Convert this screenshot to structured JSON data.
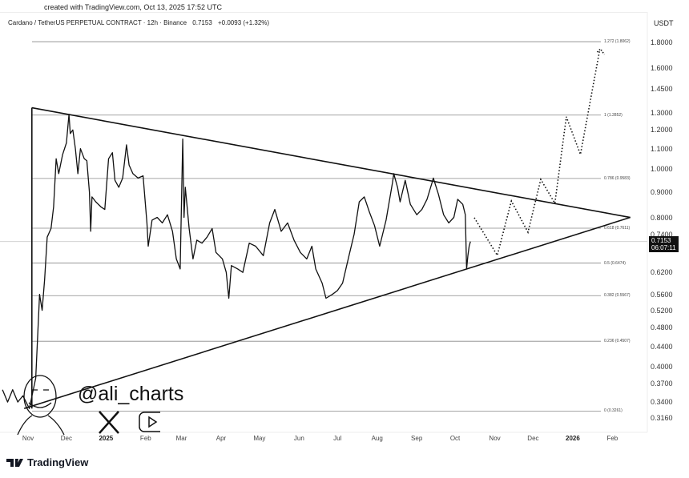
{
  "header": {
    "created": "created with TradingView.com, Oct 13, 2025 17:52 UTC",
    "symbol": "Cardano / TetherUS PERPETUAL CONTRACT · 12h · Binance",
    "price": "0.7153",
    "change": "+0.0093 (+1.32%)"
  },
  "price_tag": {
    "price": "0.7153",
    "countdown": "06:07:11"
  },
  "watermark": {
    "handle": "@ali_charts",
    "icons": [
      "x-logo-icon",
      "youtube-icon",
      "avatar-sketch"
    ]
  },
  "footer": {
    "brand": "TradingView"
  },
  "chart_data": {
    "type": "line",
    "title": "Cardano / TetherUS PERPETUAL CONTRACT · 12h · Binance",
    "ylabel": "USDT",
    "y_scale": "log",
    "ylim": [
      0.31,
      1.95
    ],
    "grid": false,
    "y_ticks": [
      "1.8000",
      "1.6000",
      "1.4500",
      "1.3000",
      "1.2000",
      "1.1000",
      "1.0000",
      "0.9000",
      "0.8000",
      "0.7400",
      "0.6200",
      "0.5600",
      "0.5200",
      "0.4800",
      "0.4400",
      "0.4000",
      "0.3700",
      "0.3400",
      "0.3160"
    ],
    "x_ticks": [
      {
        "label": "Nov",
        "date": "2024-11-01"
      },
      {
        "label": "Dec",
        "date": "2024-12-01"
      },
      {
        "label": "2025",
        "date": "2025-01-01",
        "bold": true
      },
      {
        "label": "Feb",
        "date": "2025-02-01"
      },
      {
        "label": "Mar",
        "date": "2025-03-01"
      },
      {
        "label": "Apr",
        "date": "2025-04-01"
      },
      {
        "label": "May",
        "date": "2025-05-01"
      },
      {
        "label": "Jun",
        "date": "2025-06-01"
      },
      {
        "label": "Jul",
        "date": "2025-07-01"
      },
      {
        "label": "Aug",
        "date": "2025-08-01"
      },
      {
        "label": "Sep",
        "date": "2025-09-01"
      },
      {
        "label": "Oct",
        "date": "2025-10-01"
      },
      {
        "label": "Nov",
        "date": "2025-11-01"
      },
      {
        "label": "Dec",
        "date": "2025-12-01"
      },
      {
        "label": "2026",
        "date": "2026-01-01",
        "bold": true
      },
      {
        "label": "Feb",
        "date": "2026-02-01"
      }
    ],
    "price_series": [
      [
        "2024-10-12",
        0.36
      ],
      [
        "2024-10-16",
        0.34
      ],
      [
        "2024-10-20",
        0.36
      ],
      [
        "2024-10-24",
        0.34
      ],
      [
        "2024-10-28",
        0.35
      ],
      [
        "2024-11-02",
        0.33
      ],
      [
        "2024-11-07",
        0.38
      ],
      [
        "2024-11-10",
        0.56
      ],
      [
        "2024-11-12",
        0.52
      ],
      [
        "2024-11-14",
        0.6
      ],
      [
        "2024-11-16",
        0.73
      ],
      [
        "2024-11-19",
        0.76
      ],
      [
        "2024-11-21",
        0.84
      ],
      [
        "2024-11-23",
        1.05
      ],
      [
        "2024-11-25",
        0.98
      ],
      [
        "2024-11-28",
        1.07
      ],
      [
        "2024-12-01",
        1.13
      ],
      [
        "2024-12-03",
        1.29
      ],
      [
        "2024-12-04",
        1.18
      ],
      [
        "2024-12-06",
        1.2
      ],
      [
        "2024-12-08",
        1.1
      ],
      [
        "2024-12-10",
        0.98
      ],
      [
        "2024-12-12",
        1.1
      ],
      [
        "2024-12-15",
        1.05
      ],
      [
        "2024-12-17",
        1.04
      ],
      [
        "2024-12-19",
        0.9
      ],
      [
        "2024-12-20",
        0.75
      ],
      [
        "2024-12-21",
        0.88
      ],
      [
        "2024-12-24",
        0.86
      ],
      [
        "2024-12-28",
        0.84
      ],
      [
        "2024-12-31",
        0.83
      ],
      [
        "2025-01-03",
        1.05
      ],
      [
        "2025-01-06",
        1.08
      ],
      [
        "2025-01-08",
        0.95
      ],
      [
        "2025-01-11",
        0.92
      ],
      [
        "2025-01-14",
        0.96
      ],
      [
        "2025-01-17",
        1.12
      ],
      [
        "2025-01-19",
        1.02
      ],
      [
        "2025-01-22",
        0.98
      ],
      [
        "2025-01-26",
        0.96
      ],
      [
        "2025-01-30",
        0.97
      ],
      [
        "2025-02-02",
        0.78
      ],
      [
        "2025-02-03",
        0.7
      ],
      [
        "2025-02-06",
        0.79
      ],
      [
        "2025-02-10",
        0.8
      ],
      [
        "2025-02-14",
        0.78
      ],
      [
        "2025-02-18",
        0.81
      ],
      [
        "2025-02-22",
        0.75
      ],
      [
        "2025-02-25",
        0.66
      ],
      [
        "2025-02-28",
        0.63
      ],
      [
        "2025-03-02",
        1.15
      ],
      [
        "2025-03-03",
        0.8
      ],
      [
        "2025-03-04",
        0.92
      ],
      [
        "2025-03-07",
        0.76
      ],
      [
        "2025-03-10",
        0.66
      ],
      [
        "2025-03-13",
        0.72
      ],
      [
        "2025-03-17",
        0.71
      ],
      [
        "2025-03-21",
        0.73
      ],
      [
        "2025-03-25",
        0.76
      ],
      [
        "2025-03-28",
        0.68
      ],
      [
        "2025-04-02",
        0.66
      ],
      [
        "2025-04-05",
        0.62
      ],
      [
        "2025-04-07",
        0.55
      ],
      [
        "2025-04-09",
        0.64
      ],
      [
        "2025-04-14",
        0.63
      ],
      [
        "2025-04-18",
        0.62
      ],
      [
        "2025-04-23",
        0.71
      ],
      [
        "2025-04-28",
        0.7
      ],
      [
        "2025-05-04",
        0.67
      ],
      [
        "2025-05-09",
        0.78
      ],
      [
        "2025-05-13",
        0.83
      ],
      [
        "2025-05-18",
        0.75
      ],
      [
        "2025-05-23",
        0.78
      ],
      [
        "2025-05-28",
        0.72
      ],
      [
        "2025-06-02",
        0.68
      ],
      [
        "2025-06-07",
        0.66
      ],
      [
        "2025-06-11",
        0.7
      ],
      [
        "2025-06-14",
        0.63
      ],
      [
        "2025-06-19",
        0.59
      ],
      [
        "2025-06-22",
        0.55
      ],
      [
        "2025-06-27",
        0.56
      ],
      [
        "2025-07-01",
        0.57
      ],
      [
        "2025-07-05",
        0.59
      ],
      [
        "2025-07-10",
        0.67
      ],
      [
        "2025-07-14",
        0.74
      ],
      [
        "2025-07-18",
        0.86
      ],
      [
        "2025-07-22",
        0.88
      ],
      [
        "2025-07-26",
        0.82
      ],
      [
        "2025-07-30",
        0.77
      ],
      [
        "2025-08-03",
        0.7
      ],
      [
        "2025-08-08",
        0.79
      ],
      [
        "2025-08-13",
        0.94
      ],
      [
        "2025-08-14",
        0.98
      ],
      [
        "2025-08-17",
        0.92
      ],
      [
        "2025-08-19",
        0.86
      ],
      [
        "2025-08-23",
        0.95
      ],
      [
        "2025-08-27",
        0.85
      ],
      [
        "2025-09-01",
        0.81
      ],
      [
        "2025-09-05",
        0.83
      ],
      [
        "2025-09-09",
        0.87
      ],
      [
        "2025-09-13",
        0.94
      ],
      [
        "2025-09-14",
        0.96
      ],
      [
        "2025-09-18",
        0.89
      ],
      [
        "2025-09-22",
        0.81
      ],
      [
        "2025-09-26",
        0.78
      ],
      [
        "2025-09-30",
        0.8
      ],
      [
        "2025-10-03",
        0.87
      ],
      [
        "2025-10-07",
        0.85
      ],
      [
        "2025-10-09",
        0.81
      ],
      [
        "2025-10-10",
        0.63
      ],
      [
        "2025-10-11",
        0.67
      ],
      [
        "2025-10-12",
        0.7
      ],
      [
        "2025-10-13",
        0.7153
      ]
    ],
    "triangle": {
      "upper": [
        [
          "2024-11-04",
          1.33
        ],
        [
          "2026-02-15",
          0.8
        ]
      ],
      "lower": [
        [
          "2024-10-29",
          0.33
        ],
        [
          "2026-02-15",
          0.8
        ]
      ],
      "left_edge": [
        [
          "2024-11-04",
          1.33
        ],
        [
          "2024-11-04",
          0.33
        ]
      ]
    },
    "projection": [
      [
        "2025-10-16",
        0.799
      ],
      [
        "2025-11-03",
        0.671
      ],
      [
        "2025-11-14",
        0.863
      ],
      [
        "2025-11-27",
        0.747
      ],
      [
        "2025-12-07",
        0.954
      ],
      [
        "2025-12-18",
        0.854
      ],
      [
        "2025-12-27",
        1.275
      ],
      [
        "2026-01-07",
        1.071
      ],
      [
        "2026-01-22",
        1.734
      ]
    ],
    "fib_levels": [
      {
        "ratio": "1.272",
        "price": 1.8062,
        "label": "1.272 (1.8062)"
      },
      {
        "ratio": "1",
        "price": 1.2852,
        "label": "1 (1.2852)"
      },
      {
        "ratio": "0.786",
        "price": 0.9583,
        "label": "0.786 (0.9583)"
      },
      {
        "ratio": "0.618",
        "price": 0.7611,
        "label": "0.618 (0.7611)"
      },
      {
        "ratio": "0.5",
        "price": 0.6474,
        "label": "0.5 (0.6474)"
      },
      {
        "ratio": "0.382",
        "price": 0.5567,
        "label": "0.382 (0.5567)"
      },
      {
        "ratio": "0.236",
        "price": 0.4507,
        "label": "0.236 (0.4507)"
      },
      {
        "ratio": "0",
        "price": 0.3261,
        "label": "0 (0.3261)"
      }
    ],
    "current_price": 0.7153,
    "colors": {
      "line": "#111111",
      "fib": "#888888",
      "tag_bg": "#111111"
    }
  }
}
